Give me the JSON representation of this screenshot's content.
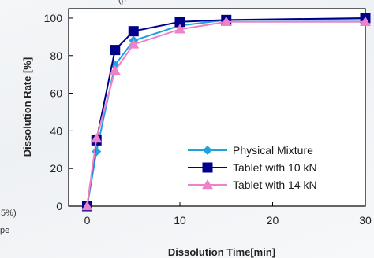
{
  "fragments": {
    "top": "(p",
    "left": ".5%)",
    "left_bottom": "pe"
  },
  "chart_data": {
    "type": "line",
    "title": "",
    "xlabel": "Dissolution Time[min]",
    "ylabel": "Dissolution Rate [%]",
    "xlim": [
      -2,
      30
    ],
    "ylim": [
      0,
      105
    ],
    "xticks": [
      0,
      10,
      20,
      30
    ],
    "yticks": [
      0,
      20,
      40,
      60,
      80,
      100
    ],
    "grid": false,
    "legend_position": "bottom-right",
    "series": [
      {
        "name": "Physical Mixture",
        "color": "#1fa3e0",
        "marker": "diamond",
        "x": [
          0,
          1,
          3,
          5,
          10,
          15,
          30
        ],
        "y": [
          0,
          29,
          75,
          88,
          96,
          99,
          99
        ]
      },
      {
        "name": "Tablet with 10 kN",
        "color": "#00008b",
        "marker": "square",
        "x": [
          0,
          1,
          3,
          5,
          10,
          15,
          30
        ],
        "y": [
          0,
          35,
          83,
          93,
          98,
          99,
          100
        ]
      },
      {
        "name": "Tablet with 14 kN",
        "color": "#ee82c8",
        "marker": "triangle",
        "x": [
          0,
          1,
          3,
          5,
          10,
          15,
          30
        ],
        "y": [
          0,
          36,
          72,
          86,
          94,
          98,
          98
        ]
      }
    ]
  }
}
